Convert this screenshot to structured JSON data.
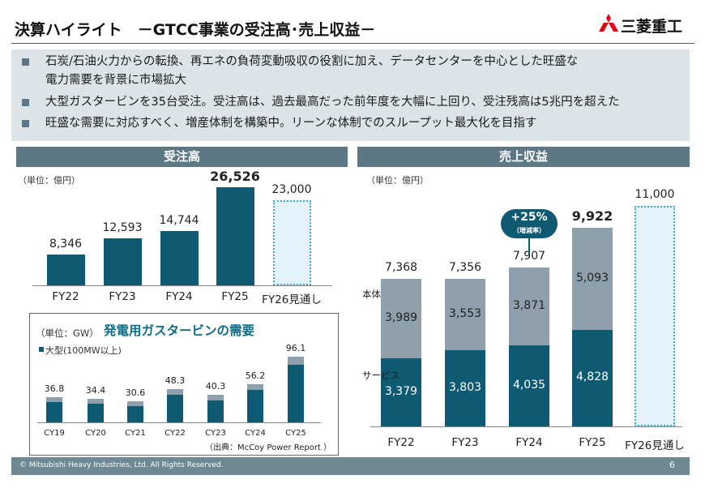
{
  "header": {
    "title": "決算ハイライト　－GTCC事業の受注高･売上収益－",
    "logo_text": "三菱重工",
    "logo_icon": "three-diamonds-icon"
  },
  "summary": {
    "bullets": [
      {
        "line1": "石炭/石油火力からの転換、再エネの負荷変動吸収の役割に加え、データセンターを中心とした旺盛な",
        "line2": "電力需要を背景に市場拡大"
      },
      {
        "line1": "大型ガスタービンを35台受注。受注高は、過去最高だった前年度を大幅に上回り、受注残高は5兆円を超えた",
        "line2": ""
      },
      {
        "line1": "旺盛な需要に対応すべく、増産体制を構築中。リーンな体制でのスループット最大化を目指す",
        "line2": ""
      }
    ]
  },
  "colors": {
    "dark_bar": "#0f5a73",
    "grey_bar": "#8da0ab",
    "forecast_border": "#39a9d4",
    "panel_head": "#5d7885"
  },
  "chart_data": [
    {
      "type": "bar",
      "title": "受注高",
      "unit": "（単位：億円）",
      "categories": [
        "FY22",
        "FY23",
        "FY24",
        "FY25",
        "FY26見通し"
      ],
      "values": [
        8346,
        12593,
        14744,
        26526,
        23000
      ],
      "value_labels": [
        "8,346",
        "12,593",
        "14,744",
        "26,526",
        "23,000"
      ],
      "forecast": [
        false,
        false,
        false,
        false,
        true
      ],
      "highlight_index": 3,
      "ylim": [
        0,
        28000
      ]
    },
    {
      "type": "bar",
      "title": "発電用ガスタービンの需要",
      "unit": "（単位：GW）",
      "legend": "大型(100MW以上)",
      "categories": [
        "CY19",
        "CY20",
        "CY21",
        "CY22",
        "CY23",
        "CY24",
        "CY25"
      ],
      "totals": [
        36.8,
        34.4,
        30.6,
        48.3,
        40.3,
        56.2,
        96.1
      ],
      "total_labels": [
        "36.8",
        "34.4",
        "30.6",
        "48.3",
        "40.3",
        "56.2",
        "96.1"
      ],
      "series": [
        {
          "name": "大型(100MW以上)",
          "values": [
            29.5,
            27.0,
            23.5,
            40.0,
            32.0,
            48.0,
            84.0
          ]
        },
        {
          "values": [
            7.3,
            7.4,
            7.1,
            8.3,
            8.3,
            8.2,
            12.1
          ]
        }
      ],
      "source": "（出典：McCoy Power Report ）",
      "ylim": [
        0,
        100
      ]
    },
    {
      "type": "bar",
      "title": "売上収益",
      "unit": "（単位：億円）",
      "categories": [
        "FY22",
        "FY23",
        "FY24",
        "FY25",
        "FY26見通し"
      ],
      "series": [
        {
          "name": "サービス",
          "values": [
            3379,
            3803,
            4035,
            4828,
            null
          ],
          "labels": [
            "3,379",
            "3,803",
            "4,035",
            "4,828",
            ""
          ]
        },
        {
          "name": "本体",
          "values": [
            3989,
            3553,
            3871,
            5093,
            null
          ],
          "labels": [
            "3,989",
            "3,553",
            "3,871",
            "5,093",
            ""
          ]
        }
      ],
      "totals": [
        7368,
        7356,
        7907,
        9922,
        11000
      ],
      "total_labels": [
        "7,368",
        "7,356",
        "7,907",
        "9,922",
        "11,000"
      ],
      "forecast": [
        false,
        false,
        false,
        false,
        true
      ],
      "highlight_index": 3,
      "growth_badge": {
        "value": "+25%",
        "sub": "（増減率）"
      },
      "ylim": [
        0,
        11600
      ]
    }
  ],
  "footer": {
    "copyright": "© Mitsubishi Heavy Industries, Ltd.  All Rights Reserved.",
    "page": "6"
  }
}
